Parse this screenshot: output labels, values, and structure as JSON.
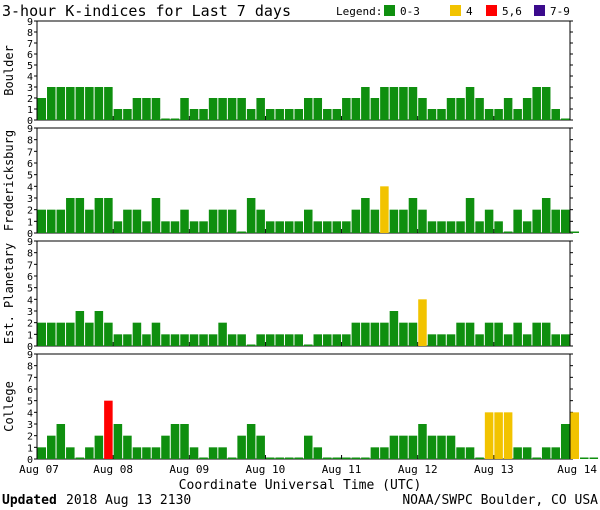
{
  "title": "3-hour K-indices for Last 7 days",
  "legend": {
    "label": "Legend:",
    "items": [
      {
        "label": "0-3",
        "color": "#0f8f0f"
      },
      {
        "label": "4",
        "color": "#f2c300"
      },
      {
        "label": "5,6",
        "color": "#ff0000"
      },
      {
        "label": "7-9",
        "color": "#3b0a8c"
      }
    ]
  },
  "xlabel": "Coordinate Universal Time (UTC)",
  "footer": {
    "updated_label": "Updated",
    "updated_value": "2018 Aug 13 2130",
    "source": "NOAA/SWPC Boulder, CO USA"
  },
  "chart_data": {
    "type": "bar",
    "x_tick_labels": [
      "Aug 07",
      "Aug 08",
      "Aug 09",
      "Aug 10",
      "Aug 11",
      "Aug 12",
      "Aug 13",
      "Aug 14"
    ],
    "ylim": [
      0,
      9
    ],
    "y_ticks": [
      0,
      1,
      2,
      3,
      4,
      5,
      6,
      7,
      8,
      9
    ],
    "intervals_per_day": 8,
    "grid": false,
    "panels": [
      {
        "name": "Boulder",
        "values": [
          2,
          3,
          3,
          3,
          3,
          3,
          3,
          3,
          1,
          1,
          2,
          2,
          2,
          0,
          0,
          2,
          1,
          1,
          2,
          2,
          2,
          2,
          1,
          2,
          1,
          1,
          1,
          1,
          2,
          2,
          1,
          1,
          2,
          2,
          3,
          2,
          3,
          3,
          3,
          3,
          2,
          1,
          1,
          2,
          2,
          3,
          2,
          1,
          1,
          2,
          1,
          2,
          3,
          3,
          1,
          0
        ]
      },
      {
        "name": "Fredericksburg",
        "values": [
          2,
          2,
          2,
          3,
          3,
          2,
          3,
          3,
          1,
          2,
          2,
          1,
          3,
          1,
          1,
          2,
          1,
          1,
          2,
          2,
          2,
          0,
          3,
          2,
          1,
          1,
          1,
          1,
          2,
          1,
          1,
          1,
          1,
          2,
          3,
          2,
          4,
          2,
          2,
          3,
          2,
          1,
          1,
          1,
          1,
          3,
          1,
          2,
          1,
          0,
          2,
          1,
          2,
          3,
          2,
          2,
          0
        ]
      },
      {
        "name": "Est. Planetary",
        "values": [
          2,
          2,
          2,
          2,
          3,
          2,
          3,
          2,
          1,
          1,
          2,
          1,
          2,
          1,
          1,
          1,
          1,
          1,
          1,
          2,
          1,
          1,
          0,
          1,
          1,
          1,
          1,
          1,
          0,
          1,
          1,
          1,
          1,
          2,
          2,
          2,
          2,
          3,
          2,
          2,
          4,
          1,
          1,
          1,
          2,
          2,
          1,
          2,
          2,
          1,
          2,
          1,
          2,
          2,
          1,
          1
        ]
      },
      {
        "name": "College",
        "values": [
          1,
          2,
          3,
          1,
          0,
          1,
          2,
          5,
          3,
          2,
          1,
          1,
          1,
          2,
          3,
          3,
          1,
          0,
          1,
          1,
          0,
          2,
          3,
          2,
          0,
          0,
          0,
          0,
          2,
          1,
          0,
          0,
          0,
          0,
          0,
          1,
          1,
          2,
          2,
          2,
          3,
          2,
          2,
          2,
          1,
          1,
          0,
          4,
          4,
          4,
          1,
          1,
          0,
          1,
          1,
          3,
          4,
          0,
          0
        ]
      }
    ]
  }
}
